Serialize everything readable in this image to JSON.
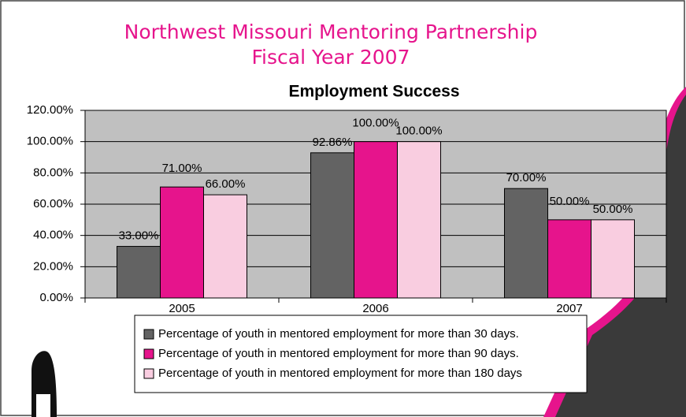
{
  "header": {
    "title_lines": [
      "Northwest Missouri Mentoring Partnership",
      "Fiscal Year 2007"
    ]
  },
  "chart_data": {
    "type": "bar",
    "title": "Employment Success",
    "categories": [
      "2005",
      "2006",
      "2007"
    ],
    "series": [
      {
        "name": "Percentage of youth in mentored employment for more than 30 days.",
        "color": "#636363",
        "values": [
          33,
          92.86,
          70
        ],
        "value_labels": [
          "33.00%",
          "92.86%",
          "70.00%"
        ]
      },
      {
        "name": "Percentage of youth in mentored employment for more than 90 days.",
        "color": "#e6148c",
        "values": [
          71,
          100,
          50
        ],
        "value_labels": [
          "71.00%",
          "100.00%",
          "50.00%"
        ]
      },
      {
        "name": "Percentage of youth in mentored employment for more than 180 days",
        "color": "#f9cde0",
        "values": [
          66,
          100,
          50
        ],
        "value_labels": [
          "66.00%",
          "100.00%",
          "50.00%"
        ]
      }
    ],
    "ylim": [
      0,
      120
    ],
    "yticks": [
      {
        "value": 0,
        "label": "0.00%"
      },
      {
        "value": 20,
        "label": "20.00%"
      },
      {
        "value": 40,
        "label": "40.00%"
      },
      {
        "value": 60,
        "label": "60.00%"
      },
      {
        "value": 80,
        "label": "80.00%"
      },
      {
        "value": 100,
        "label": "100.00%"
      },
      {
        "value": 120,
        "label": "120.00%"
      }
    ],
    "grid": true,
    "plot_background": "#c0c0c0"
  }
}
